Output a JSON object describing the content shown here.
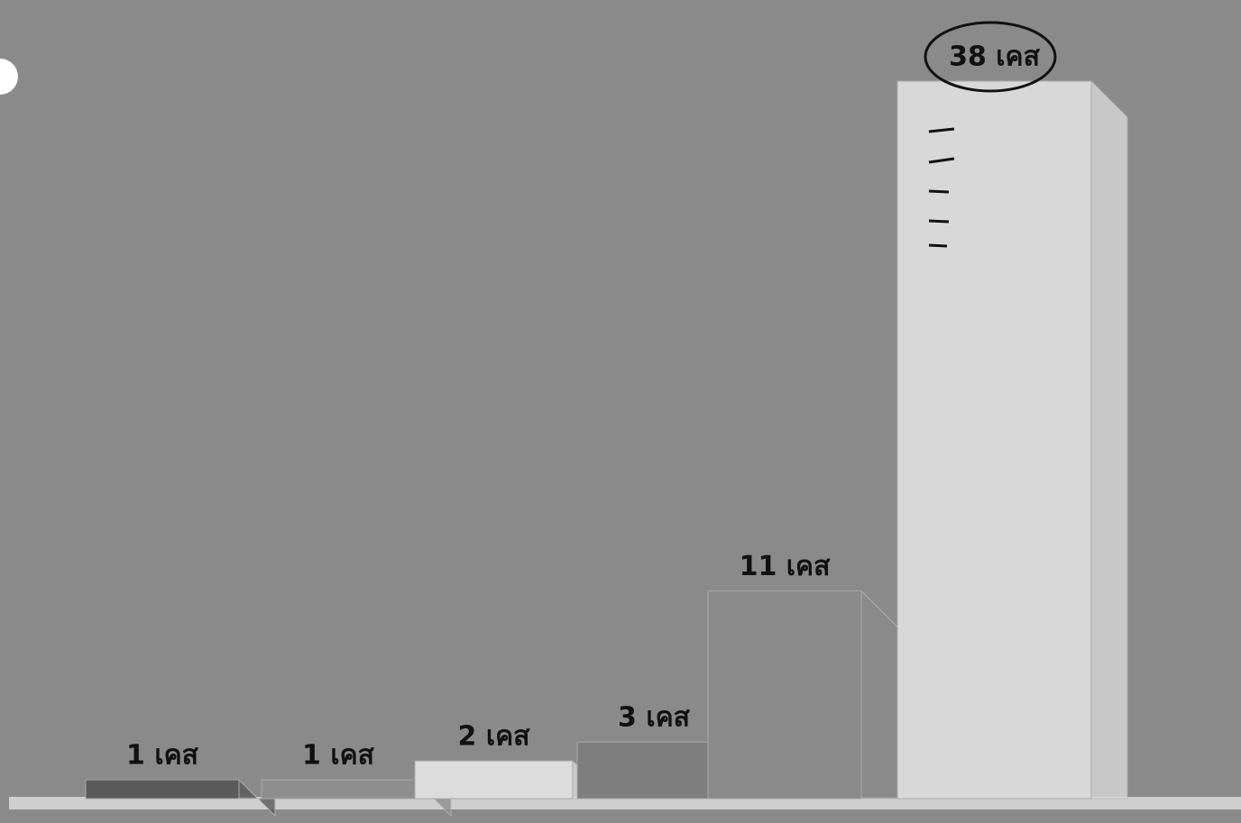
{
  "chart_data": {
    "type": "bar3d",
    "values": [
      1,
      1,
      2,
      3,
      11,
      38
    ],
    "value_labels": [
      "1 เคส",
      "1 เคส",
      "2 เคส",
      "3 เคส",
      "11 เคส",
      "38 เคส"
    ],
    "colors": [
      "#5a5a5a",
      "#8e8e8e",
      "#dcdcdc",
      "#7e7e7e",
      "#8a8a8a",
      "#d8d8d8"
    ]
  }
}
